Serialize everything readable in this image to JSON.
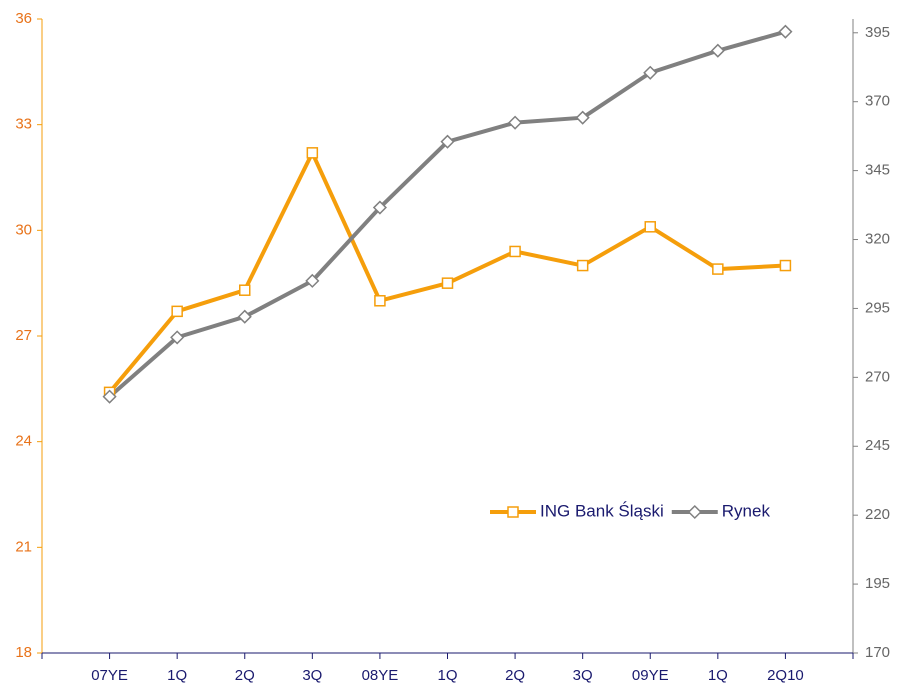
{
  "chart_data": {
    "type": "line",
    "categories": [
      "07YE",
      "1Q",
      "2Q",
      "3Q",
      "08YE",
      "1Q",
      "2Q",
      "3Q",
      "09YE",
      "1Q",
      "2Q10"
    ],
    "series": [
      {
        "name": "ING Bank Śląski",
        "color": "#f59e0b",
        "marker": "square",
        "axis": "y",
        "values": [
          25.4,
          27.7,
          28.3,
          32.2,
          28.0,
          28.5,
          29.4,
          29.0,
          30.1,
          28.9,
          29.0
        ]
      },
      {
        "name": "Rynek",
        "color": "#808080",
        "marker": "diamond",
        "axis": "y2",
        "values": [
          263,
          284.5,
          292,
          305,
          331.6,
          355.5,
          362.4,
          364.2,
          380.5,
          388.5,
          395.4
        ]
      }
    ],
    "ylim": [
      18,
      36
    ],
    "yticks": [
      18,
      21,
      24,
      27,
      30,
      33,
      36
    ],
    "y2lim": [
      170,
      400
    ],
    "y2ticks": [
      170,
      195,
      220,
      245,
      270,
      295,
      320,
      345,
      370,
      395
    ],
    "legend": "center right",
    "grid": false
  }
}
